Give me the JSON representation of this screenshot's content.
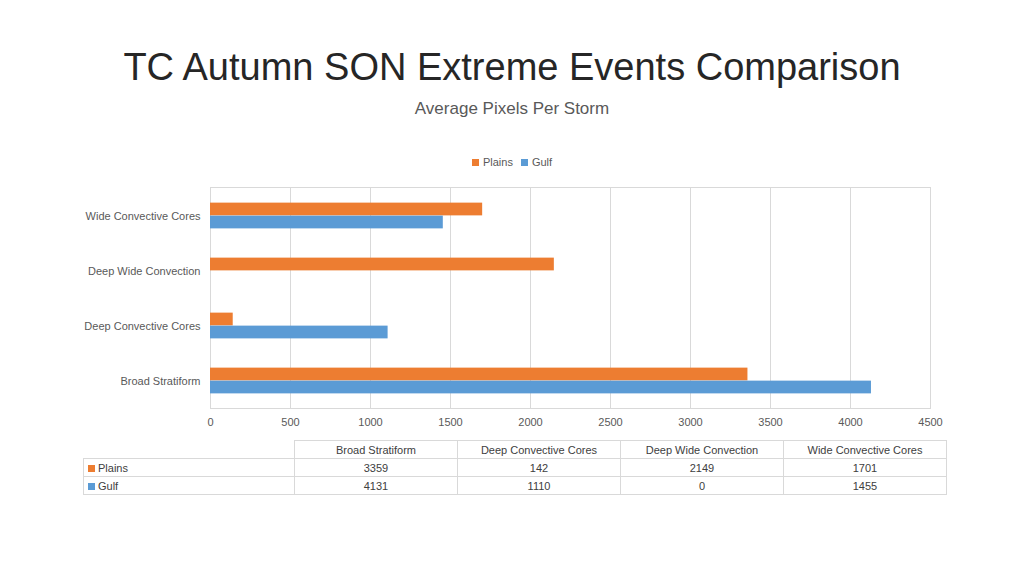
{
  "chart_data": {
    "type": "bar",
    "orientation": "horizontal",
    "title": "TC Autumn SON Extreme Events Comparison",
    "subtitle": "Average Pixels Per Storm",
    "categories": [
      "Broad Stratiform",
      "Deep Convective Cores",
      "Deep Wide Convection",
      "Wide Convective Cores"
    ],
    "series": [
      {
        "name": "Plains",
        "color": "#ed7d31",
        "values": [
          3359,
          142,
          2149,
          1701
        ]
      },
      {
        "name": "Gulf",
        "color": "#5b9bd5",
        "values": [
          4131,
          1110,
          0,
          1455
        ]
      }
    ],
    "xlim": [
      0,
      4500
    ],
    "xticks": [
      0,
      500,
      1000,
      1500,
      2000,
      2500,
      3000,
      3500,
      4000,
      4500
    ],
    "grid": true,
    "legend": "top"
  }
}
